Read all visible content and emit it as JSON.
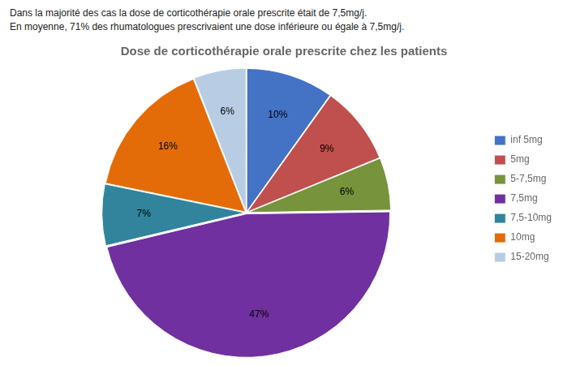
{
  "chart_data": {
    "type": "pie",
    "title": "Dose de corticothérapie orale prescrite chez les patients",
    "annotations": [
      "Dans la majorité des cas la dose de corticothérapie orale prescrite était de 7,5mg/j.",
      "En moyenne, 71% des rhumatologues prescrivaient une dose inférieure ou égale à 7,5mg/j."
    ],
    "categories": [
      "inf 5mg",
      "5mg",
      "5-7,5mg",
      "7,5mg",
      "7,5-10mg",
      "10mg",
      "15-20mg"
    ],
    "values": [
      10,
      9,
      6,
      47,
      7,
      16,
      6
    ],
    "value_labels": [
      "10%",
      "9%",
      "6%",
      "47%",
      "7%",
      "16%",
      "6%"
    ],
    "colors": [
      "#4472C4",
      "#C0504D",
      "#77933C",
      "#7030A0",
      "#31849B",
      "#E36C09",
      "#B8CCE4"
    ],
    "legend": "right",
    "data_labels": true
  }
}
